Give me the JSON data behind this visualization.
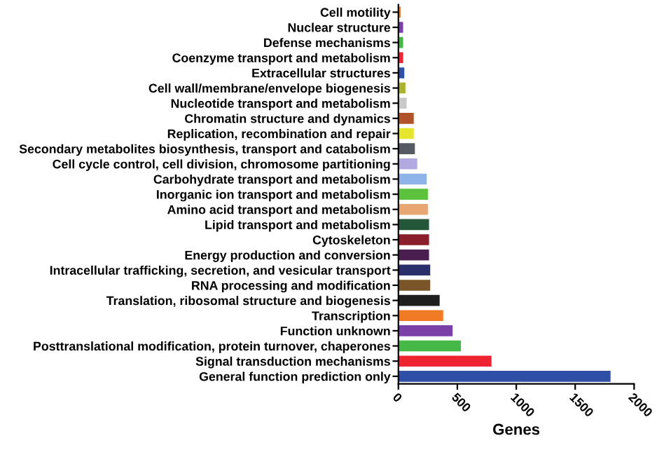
{
  "chart_data": {
    "type": "bar",
    "orientation": "horizontal",
    "xlabel": "Genes",
    "categories": [
      "Cell motility",
      "Nuclear structure",
      "Defense mechanisms",
      "Coenzyme transport and metabolism",
      "Extracellular structures",
      "Cell wall/membrane/envelope biogenesis",
      "Nucleotide transport and metabolism",
      "Chromatin structure and dynamics",
      "Replication, recombination and repair",
      "Secondary metabolites biosynthesis, transport and catabolism",
      "Cell cycle control, cell division, chromosome partitioning",
      "Carbohydrate transport and metabolism",
      "Inorganic ion transport and metabolism",
      "Amino acid transport and metabolism",
      "Lipid transport and metabolism",
      "Cytoskeleton",
      "Energy production and conversion",
      "Intracellular trafficking, secretion, and vesicular transport",
      "RNA processing and modification",
      "Translation, ribosomal structure and biogenesis",
      "Transcription",
      "Function unknown",
      "Posttranslational modification, protein turnover, chaperones",
      "Signal transduction mechanisms",
      "General function prediction only"
    ],
    "values": [
      20,
      40,
      40,
      40,
      50,
      60,
      70,
      130,
      130,
      140,
      160,
      240,
      250,
      250,
      260,
      260,
      260,
      270,
      270,
      350,
      380,
      460,
      530,
      790,
      1800
    ],
    "colors": [
      "#f07f2a",
      "#7b3fa8",
      "#45b848",
      "#ee2431",
      "#2f4fa6",
      "#a9b32f",
      "#c8c8c8",
      "#b0532a",
      "#e6e62e",
      "#555a63",
      "#b1a9e0",
      "#8db3e8",
      "#5cc23e",
      "#e8a672",
      "#24573a",
      "#8a1e2b",
      "#4a1f4f",
      "#2a2f6b",
      "#7a5527",
      "#1e1e1e",
      "#f17a24",
      "#7b3fa8",
      "#45b848",
      "#ee2431",
      "#2f4fa6"
    ],
    "xlim": [
      0,
      2000
    ],
    "xticks": [
      0,
      500,
      1000,
      1500,
      2000
    ],
    "grid": false,
    "legend": false
  }
}
